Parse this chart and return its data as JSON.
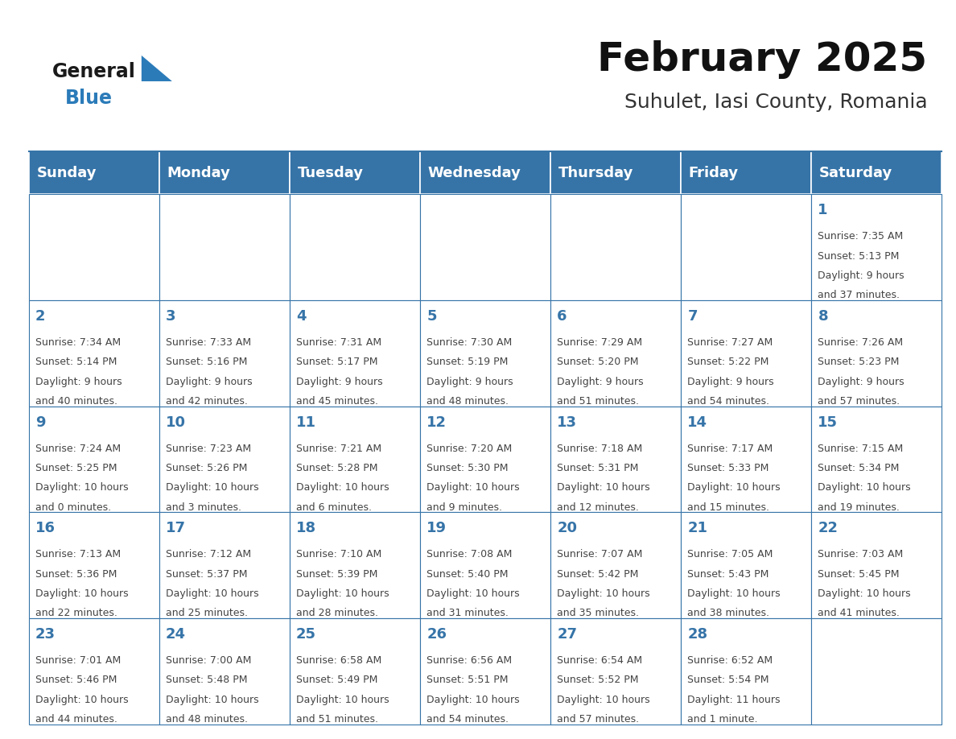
{
  "title": "February 2025",
  "subtitle": "Suhulet, Iasi County, Romania",
  "header_color": "#3674a8",
  "header_text_color": "#ffffff",
  "cell_bg_color": "#ffffff",
  "grid_color": "#3674a8",
  "day_number_color": "#3674a8",
  "cell_text_color": "#444444",
  "days_of_week": [
    "Sunday",
    "Monday",
    "Tuesday",
    "Wednesday",
    "Thursday",
    "Friday",
    "Saturday"
  ],
  "calendar_data": [
    [
      null,
      null,
      null,
      null,
      null,
      null,
      {
        "day": 1,
        "sunrise": "7:35 AM",
        "sunset": "5:13 PM",
        "daylight": "9 hours",
        "daylight2": "and 37 minutes."
      }
    ],
    [
      {
        "day": 2,
        "sunrise": "7:34 AM",
        "sunset": "5:14 PM",
        "daylight": "9 hours",
        "daylight2": "and 40 minutes."
      },
      {
        "day": 3,
        "sunrise": "7:33 AM",
        "sunset": "5:16 PM",
        "daylight": "9 hours",
        "daylight2": "and 42 minutes."
      },
      {
        "day": 4,
        "sunrise": "7:31 AM",
        "sunset": "5:17 PM",
        "daylight": "9 hours",
        "daylight2": "and 45 minutes."
      },
      {
        "day": 5,
        "sunrise": "7:30 AM",
        "sunset": "5:19 PM",
        "daylight": "9 hours",
        "daylight2": "and 48 minutes."
      },
      {
        "day": 6,
        "sunrise": "7:29 AM",
        "sunset": "5:20 PM",
        "daylight": "9 hours",
        "daylight2": "and 51 minutes."
      },
      {
        "day": 7,
        "sunrise": "7:27 AM",
        "sunset": "5:22 PM",
        "daylight": "9 hours",
        "daylight2": "and 54 minutes."
      },
      {
        "day": 8,
        "sunrise": "7:26 AM",
        "sunset": "5:23 PM",
        "daylight": "9 hours",
        "daylight2": "and 57 minutes."
      }
    ],
    [
      {
        "day": 9,
        "sunrise": "7:24 AM",
        "sunset": "5:25 PM",
        "daylight": "10 hours",
        "daylight2": "and 0 minutes."
      },
      {
        "day": 10,
        "sunrise": "7:23 AM",
        "sunset": "5:26 PM",
        "daylight": "10 hours",
        "daylight2": "and 3 minutes."
      },
      {
        "day": 11,
        "sunrise": "7:21 AM",
        "sunset": "5:28 PM",
        "daylight": "10 hours",
        "daylight2": "and 6 minutes."
      },
      {
        "day": 12,
        "sunrise": "7:20 AM",
        "sunset": "5:30 PM",
        "daylight": "10 hours",
        "daylight2": "and 9 minutes."
      },
      {
        "day": 13,
        "sunrise": "7:18 AM",
        "sunset": "5:31 PM",
        "daylight": "10 hours",
        "daylight2": "and 12 minutes."
      },
      {
        "day": 14,
        "sunrise": "7:17 AM",
        "sunset": "5:33 PM",
        "daylight": "10 hours",
        "daylight2": "and 15 minutes."
      },
      {
        "day": 15,
        "sunrise": "7:15 AM",
        "sunset": "5:34 PM",
        "daylight": "10 hours",
        "daylight2": "and 19 minutes."
      }
    ],
    [
      {
        "day": 16,
        "sunrise": "7:13 AM",
        "sunset": "5:36 PM",
        "daylight": "10 hours",
        "daylight2": "and 22 minutes."
      },
      {
        "day": 17,
        "sunrise": "7:12 AM",
        "sunset": "5:37 PM",
        "daylight": "10 hours",
        "daylight2": "and 25 minutes."
      },
      {
        "day": 18,
        "sunrise": "7:10 AM",
        "sunset": "5:39 PM",
        "daylight": "10 hours",
        "daylight2": "and 28 minutes."
      },
      {
        "day": 19,
        "sunrise": "7:08 AM",
        "sunset": "5:40 PM",
        "daylight": "10 hours",
        "daylight2": "and 31 minutes."
      },
      {
        "day": 20,
        "sunrise": "7:07 AM",
        "sunset": "5:42 PM",
        "daylight": "10 hours",
        "daylight2": "and 35 minutes."
      },
      {
        "day": 21,
        "sunrise": "7:05 AM",
        "sunset": "5:43 PM",
        "daylight": "10 hours",
        "daylight2": "and 38 minutes."
      },
      {
        "day": 22,
        "sunrise": "7:03 AM",
        "sunset": "5:45 PM",
        "daylight": "10 hours",
        "daylight2": "and 41 minutes."
      }
    ],
    [
      {
        "day": 23,
        "sunrise": "7:01 AM",
        "sunset": "5:46 PM",
        "daylight": "10 hours",
        "daylight2": "and 44 minutes."
      },
      {
        "day": 24,
        "sunrise": "7:00 AM",
        "sunset": "5:48 PM",
        "daylight": "10 hours",
        "daylight2": "and 48 minutes."
      },
      {
        "day": 25,
        "sunrise": "6:58 AM",
        "sunset": "5:49 PM",
        "daylight": "10 hours",
        "daylight2": "and 51 minutes."
      },
      {
        "day": 26,
        "sunrise": "6:56 AM",
        "sunset": "5:51 PM",
        "daylight": "10 hours",
        "daylight2": "and 54 minutes."
      },
      {
        "day": 27,
        "sunrise": "6:54 AM",
        "sunset": "5:52 PM",
        "daylight": "10 hours",
        "daylight2": "and 57 minutes."
      },
      {
        "day": 28,
        "sunrise": "6:52 AM",
        "sunset": "5:54 PM",
        "daylight": "11 hours",
        "daylight2": "and 1 minute."
      },
      null
    ]
  ],
  "logo_general_color": "#1a1a1a",
  "logo_blue_color": "#2b7bb9",
  "figure_bg": "#ffffff",
  "title_fontsize": 36,
  "subtitle_fontsize": 18,
  "header_fontsize": 13,
  "day_num_fontsize": 13,
  "cell_text_fontsize": 9
}
